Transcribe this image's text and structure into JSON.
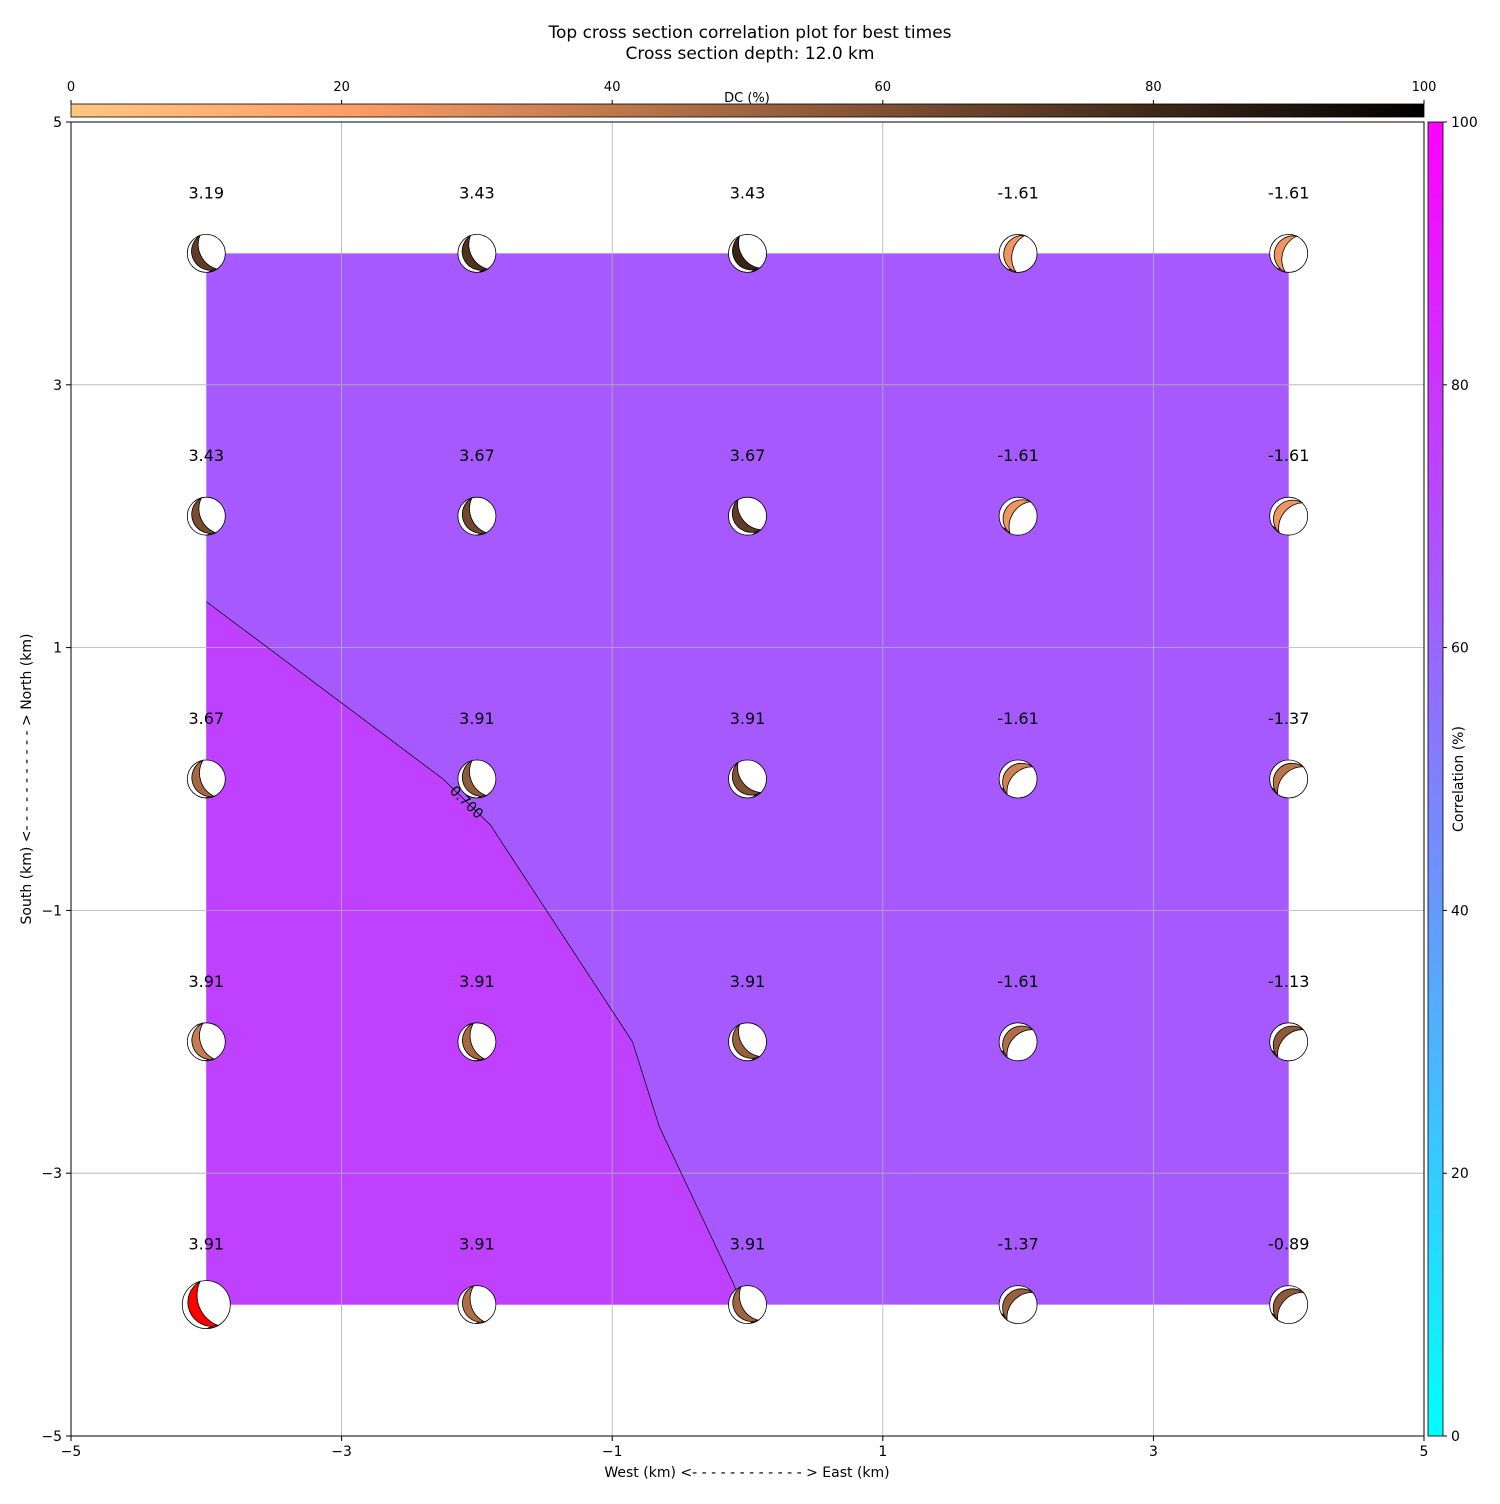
{
  "chart_data": {
    "type": "beachball-map",
    "title": "Top cross section correlation plot for best times",
    "subtitle": "Cross section depth: 12.0 km",
    "xlabel": "West (km) <- - - - - - - - - - - - > East (km)",
    "ylabel": "South (km) <- - - - - - - - - - - > North (km)",
    "xlim": [
      -5,
      5
    ],
    "ylim": [
      -5,
      5
    ],
    "xticks": [
      {
        "value": -5,
        "label": "−5"
      },
      {
        "value": -3,
        "label": "−3"
      },
      {
        "value": -1,
        "label": "−1"
      },
      1,
      3,
      5
    ],
    "yticks": [
      {
        "value": -5,
        "label": "−5"
      },
      {
        "value": -3,
        "label": "−3"
      },
      {
        "value": -1,
        "label": "−1"
      },
      1,
      3,
      5
    ],
    "grid": true,
    "dc_colorbar": {
      "label": "DC (%)",
      "lim": [
        0,
        100
      ],
      "ticks": [
        0,
        20,
        40,
        60,
        80,
        100
      ]
    },
    "correlation_colorbar": {
      "label": "Correlation (%)",
      "lim": [
        0,
        100
      ],
      "ticks": [
        0,
        20,
        40,
        60,
        80,
        100
      ]
    },
    "regions": [
      {
        "value": 65,
        "x": [
          -4,
          4,
          4,
          -4
        ],
        "y": [
          4,
          4,
          -4,
          -4
        ]
      },
      {
        "value": 75,
        "x": [
          -4,
          -2.25,
          -1.9,
          -0.85,
          -0.65,
          -0.1,
          -0.05,
          -4
        ],
        "y": [
          1.35,
          0,
          -0.35,
          -2,
          -2.65,
          -3.85,
          -4,
          -4
        ]
      }
    ],
    "contour": {
      "label": "0.700",
      "x": [
        -4,
        -2.25,
        -1.9,
        -0.85,
        -0.65,
        -0.1,
        -0.05
      ],
      "y": [
        1.35,
        0,
        -0.35,
        -2,
        -2.65,
        -3.85,
        -4
      ]
    },
    "best": 20,
    "best_color": "#ff0000",
    "points": [
      {
        "x": -4,
        "y": 4,
        "label": 3.19,
        "dc": 70,
        "strike": 340
      },
      {
        "x": -2,
        "y": 4,
        "label": 3.43,
        "dc": 75,
        "strike": 340
      },
      {
        "x": 0,
        "y": 4,
        "label": 3.43,
        "dc": 82,
        "strike": 335
      },
      {
        "x": 2,
        "y": 4,
        "label": -1.61,
        "dc": 25,
        "strike": 20
      },
      {
        "x": 4,
        "y": 4,
        "label": -1.61,
        "dc": 25,
        "strike": 25
      },
      {
        "x": -4,
        "y": 2,
        "label": 3.43,
        "dc": 62,
        "strike": 345
      },
      {
        "x": -2,
        "y": 2,
        "label": 3.67,
        "dc": 65,
        "strike": 345
      },
      {
        "x": 0,
        "y": 2,
        "label": 3.67,
        "dc": 70,
        "strike": 330
      },
      {
        "x": 2,
        "y": 2,
        "label": -1.61,
        "dc": 25,
        "strike": 40
      },
      {
        "x": 4,
        "y": 2,
        "label": -1.61,
        "dc": 25,
        "strike": 45
      },
      {
        "x": -4,
        "y": 0,
        "label": 3.67,
        "dc": 48,
        "strike": 350
      },
      {
        "x": -2,
        "y": 0,
        "label": 3.91,
        "dc": 55,
        "strike": 345
      },
      {
        "x": 0,
        "y": 0,
        "label": 3.91,
        "dc": 60,
        "strike": 330
      },
      {
        "x": 2,
        "y": 0,
        "label": -1.61,
        "dc": 35,
        "strike": 50
      },
      {
        "x": 4,
        "y": 0,
        "label": -1.37,
        "dc": 42,
        "strike": 50
      },
      {
        "x": -4,
        "y": -2,
        "label": 3.91,
        "dc": 38,
        "strike": 350
      },
      {
        "x": -2,
        "y": -2,
        "label": 3.91,
        "dc": 48,
        "strike": 350
      },
      {
        "x": 0,
        "y": -2,
        "label": 3.91,
        "dc": 52,
        "strike": 335
      },
      {
        "x": 2,
        "y": -2,
        "label": -1.61,
        "dc": 45,
        "strike": 50
      },
      {
        "x": 4,
        "y": -2,
        "label": -1.13,
        "dc": 55,
        "strike": 50
      },
      {
        "x": -4,
        "y": -4,
        "label": 3.91,
        "dc": 50,
        "strike": 345
      },
      {
        "x": -2,
        "y": -4,
        "label": 3.91,
        "dc": 45,
        "strike": 350
      },
      {
        "x": 0,
        "y": -4,
        "label": 3.91,
        "dc": 50,
        "strike": 340
      },
      {
        "x": 2,
        "y": -4,
        "label": -1.37,
        "dc": 52,
        "strike": 50
      },
      {
        "x": 4,
        "y": -4,
        "label": -0.89,
        "dc": 55,
        "strike": 50
      }
    ]
  }
}
